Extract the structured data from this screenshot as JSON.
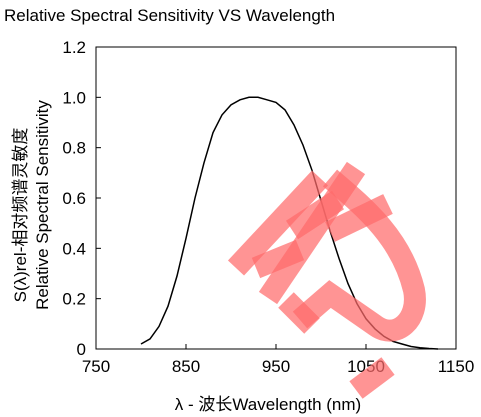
{
  "chart_data": {
    "type": "line",
    "title": "Relative Spectral Sensitivity VS Wavelength",
    "xlabel": "λ - 波长Wavelength (nm)",
    "ylabel_line1": "S(λ)rel-相对频谱灵敏度",
    "ylabel_line2": "Relative Spectral Sensitivity",
    "xlim": [
      750,
      1150
    ],
    "ylim": [
      0,
      1.2
    ],
    "x_ticks": [
      "750",
      "850",
      "950",
      "1050",
      "1150"
    ],
    "y_ticks": [
      "0",
      "0.2",
      "0.4",
      "0.6",
      "0.8",
      "1.0",
      "1.2"
    ],
    "grid": false,
    "series": [
      {
        "x": [
          800,
          810,
          820,
          830,
          840,
          850,
          860,
          870,
          880,
          890,
          900,
          910,
          920,
          930,
          940,
          950,
          960,
          970,
          980,
          990,
          1000,
          1010,
          1020,
          1030,
          1040,
          1050,
          1060,
          1070,
          1080,
          1090,
          1100,
          1110,
          1120,
          1130
        ],
        "y": [
          0.02,
          0.04,
          0.09,
          0.17,
          0.29,
          0.44,
          0.6,
          0.74,
          0.86,
          0.93,
          0.97,
          0.99,
          1.0,
          1.0,
          0.99,
          0.98,
          0.95,
          0.89,
          0.81,
          0.71,
          0.59,
          0.47,
          0.36,
          0.26,
          0.18,
          0.12,
          0.08,
          0.05,
          0.03,
          0.02,
          0.01,
          0.005,
          0.002,
          0.0
        ]
      }
    ]
  },
  "watermark_text": "谷",
  "colors": {
    "curve": "#000000",
    "axes": "#000000",
    "watermark": "#ff6b6b"
  }
}
